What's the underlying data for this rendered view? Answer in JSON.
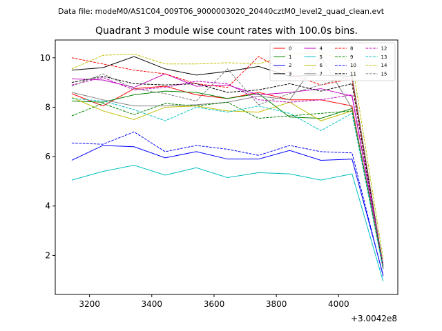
{
  "header": {
    "data_file": "Data file: modeM0/AS1C04_009T06_9000003020_20440cztM0_level2_quad_clean.evt"
  },
  "chart_data": {
    "type": "line",
    "title": "Quadrant 3 module wise count rates with 100.0s bins.",
    "xlabel": "",
    "ylabel": "",
    "x_offset_label": "+3.0042e8",
    "xlim": [
      3090,
      4190
    ],
    "ylim": [
      0.42,
      10.72
    ],
    "xticks": [
      3200,
      3400,
      3600,
      3800,
      4000
    ],
    "yticks": [
      2,
      4,
      6,
      8,
      10
    ],
    "x": [
      3143,
      3243,
      3343,
      3443,
      3543,
      3643,
      3743,
      3843,
      3943,
      4043,
      4143
    ],
    "grid": false,
    "legend_position": "top-right",
    "series": [
      {
        "name": "0",
        "color": "#ff0000",
        "dash": false,
        "values": [
          8.55,
          8.05,
          8.75,
          8.85,
          8.5,
          8.35,
          8.6,
          8.3,
          8.3,
          8.05,
          1.45
        ]
      },
      {
        "name": "1",
        "color": "#008000",
        "dash": false,
        "values": [
          8.25,
          8.2,
          8.5,
          8.65,
          8.6,
          8.35,
          8.55,
          7.6,
          7.55,
          7.95,
          1.6
        ]
      },
      {
        "name": "2",
        "color": "#0000ff",
        "dash": false,
        "values": [
          5.85,
          6.45,
          6.4,
          5.95,
          6.2,
          5.9,
          5.9,
          6.25,
          5.85,
          5.9,
          1.2
        ]
      },
      {
        "name": "3",
        "color": "#000000",
        "dash": false,
        "values": [
          9.5,
          9.6,
          10.05,
          9.55,
          9.3,
          9.45,
          9.65,
          9.25,
          9.3,
          9.25,
          1.5
        ]
      },
      {
        "name": "4",
        "color": "#bf00bf",
        "dash": false,
        "values": [
          9.15,
          9.1,
          8.8,
          9.35,
          8.85,
          8.9,
          8.5,
          8.6,
          8.75,
          8.45,
          1.5
        ]
      },
      {
        "name": "5",
        "color": "#00bfbf",
        "dash": false,
        "values": [
          5.05,
          5.4,
          5.65,
          5.25,
          5.55,
          5.15,
          5.35,
          5.3,
          5.05,
          5.3,
          0.95
        ]
      },
      {
        "name": "6",
        "color": "#bfbf00",
        "dash": false,
        "values": [
          8.4,
          7.85,
          7.5,
          8.0,
          8.05,
          7.85,
          7.8,
          8.2,
          7.45,
          7.85,
          1.6
        ]
      },
      {
        "name": "7",
        "color": "#808080",
        "dash": false,
        "values": [
          8.6,
          8.3,
          8.05,
          8.05,
          8.1,
          8.2,
          8.45,
          8.3,
          10.05,
          7.95,
          1.5
        ]
      },
      {
        "name": "8",
        "color": "#ff0000",
        "dash": true,
        "values": [
          10.0,
          9.75,
          9.5,
          9.35,
          8.95,
          8.8,
          10.05,
          9.35,
          8.9,
          9.15,
          1.55
        ]
      },
      {
        "name": "9",
        "color": "#008000",
        "dash": true,
        "values": [
          7.65,
          8.15,
          7.7,
          8.15,
          8.05,
          8.2,
          7.55,
          7.65,
          7.75,
          7.85,
          1.55
        ]
      },
      {
        "name": "10",
        "color": "#0000ff",
        "dash": true,
        "values": [
          6.55,
          6.5,
          7.0,
          6.2,
          6.45,
          6.3,
          6.05,
          6.45,
          6.2,
          6.15,
          1.15
        ]
      },
      {
        "name": "11",
        "color": "#000000",
        "dash": true,
        "values": [
          9.0,
          9.25,
          8.95,
          8.9,
          8.95,
          8.6,
          8.7,
          8.95,
          8.65,
          8.95,
          1.5
        ]
      },
      {
        "name": "12",
        "color": "#bf00bf",
        "dash": true,
        "values": [
          8.9,
          9.2,
          8.7,
          8.8,
          9.05,
          8.95,
          8.3,
          8.2,
          8.3,
          8.5,
          1.65
        ]
      },
      {
        "name": "13",
        "color": "#00bfbf",
        "dash": true,
        "values": [
          8.35,
          8.25,
          7.9,
          7.45,
          8.0,
          7.8,
          8.05,
          7.75,
          7.05,
          7.75,
          1.45
        ]
      },
      {
        "name": "14",
        "color": "#bfbf00",
        "dash": true,
        "values": [
          9.55,
          10.1,
          10.15,
          9.75,
          9.75,
          9.8,
          9.75,
          10.15,
          10.2,
          9.85,
          1.85
        ]
      },
      {
        "name": "15",
        "color": "#808080",
        "dash": true,
        "values": [
          8.85,
          9.35,
          8.75,
          8.55,
          8.25,
          9.55,
          8.1,
          8.55,
          8.9,
          9.3,
          1.6
        ]
      }
    ]
  }
}
